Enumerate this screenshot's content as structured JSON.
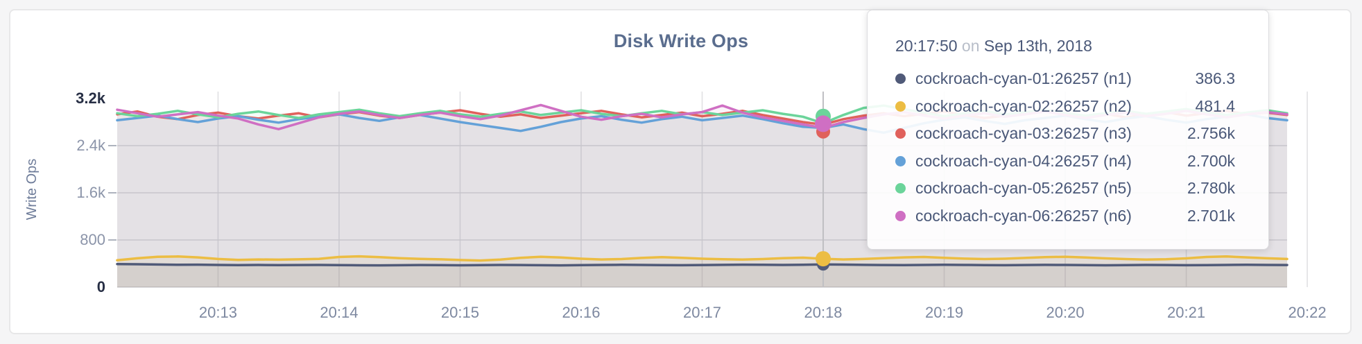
{
  "page": {
    "background": "#f5f5f6",
    "card_border": "#e7e7e8"
  },
  "chart_data": {
    "type": "line",
    "title": "Disk Write Ops",
    "ylabel": "Write Ops",
    "grid": true,
    "ylim": [
      0,
      3200
    ],
    "x_start_time": "20:12:10",
    "x_interval_seconds": 10,
    "x_ticks": [
      "20:13",
      "20:14",
      "20:15",
      "20:16",
      "20:17",
      "20:18",
      "20:19",
      "20:20",
      "20:21",
      "20:22"
    ],
    "y_ticks": [
      {
        "label": "3.2k",
        "value": 3200,
        "emphasis": true,
        "tick_dash": false
      },
      {
        "label": "2.4k",
        "value": 2400,
        "emphasis": false,
        "tick_dash": true
      },
      {
        "label": "1.6k",
        "value": 1600,
        "emphasis": false,
        "tick_dash": true
      },
      {
        "label": "800",
        "value": 800,
        "emphasis": false,
        "tick_dash": true
      },
      {
        "label": "0",
        "value": 0,
        "emphasis": true,
        "tick_dash": false
      }
    ],
    "series": [
      {
        "id": "n1",
        "name": "cockroach-cyan-01:26257 (n1)",
        "color": "#505a78",
        "fill_opacity": 0.1,
        "values": [
          392,
          388,
          383,
          379,
          381,
          377,
          374,
          376,
          373,
          375,
          377,
          374,
          371,
          369,
          372,
          375,
          373,
          371,
          374,
          377,
          375,
          372,
          370,
          373,
          376,
          379,
          377,
          374,
          372,
          375,
          378,
          381,
          379,
          376,
          380,
          386.3,
          382,
          378,
          375,
          373,
          376,
          379,
          377,
          374,
          372,
          375,
          378,
          376,
          373,
          371,
          374,
          377,
          375,
          372,
          374,
          377,
          380,
          377,
          375
        ]
      },
      {
        "id": "n2",
        "name": "cockroach-cyan-02:26257 (n2)",
        "color": "#ecbd43",
        "fill_opacity": 0.1,
        "values": [
          455,
          490,
          515,
          520,
          505,
          478,
          462,
          470,
          466,
          472,
          480,
          512,
          522,
          508,
          492,
          480,
          472,
          460,
          452,
          468,
          498,
          515,
          502,
          482,
          470,
          476,
          495,
          508,
          496,
          482,
          474,
          468,
          476,
          492,
          500,
          481.4,
          470,
          478,
          492,
          505,
          512,
          498,
          484,
          476,
          482,
          495,
          508,
          515,
          502,
          488,
          476,
          468,
          474,
          488,
          512,
          520,
          505,
          490,
          478
        ]
      },
      {
        "id": "n3",
        "name": "cockroach-cyan-03:26257 (n3)",
        "color": "#e0615c",
        "fill_opacity": 0.08,
        "values": [
          2930,
          2980,
          2890,
          2850,
          2920,
          2960,
          2900,
          2860,
          2910,
          2950,
          2880,
          2930,
          2970,
          2910,
          2870,
          2920,
          2960,
          3000,
          2940,
          2890,
          2930,
          2870,
          2910,
          2950,
          2990,
          2930,
          2880,
          2920,
          2960,
          2900,
          2940,
          2990,
          2920,
          2860,
          2800,
          2756,
          2850,
          2910,
          2950,
          2900,
          2940,
          2980,
          2920,
          2870,
          2910,
          2960,
          3000,
          2950,
          2900,
          2940,
          2880,
          2920,
          2970,
          2910,
          2950,
          2990,
          2930,
          2960,
          2920
        ]
      },
      {
        "id": "n4",
        "name": "cockroach-cyan-04:26257 (n4)",
        "color": "#64a1d8",
        "fill_opacity": 0.08,
        "values": [
          2830,
          2870,
          2910,
          2850,
          2800,
          2860,
          2900,
          2840,
          2790,
          2850,
          2890,
          2930,
          2870,
          2820,
          2880,
          2920,
          2860,
          2800,
          2750,
          2700,
          2650,
          2720,
          2800,
          2860,
          2900,
          2840,
          2790,
          2850,
          2890,
          2830,
          2870,
          2910,
          2850,
          2780,
          2720,
          2700,
          2760,
          2680,
          2620,
          2700,
          2780,
          2840,
          2880,
          2820,
          2770,
          2830,
          2870,
          2910,
          2850,
          2800,
          2860,
          2900,
          2840,
          2790,
          2850,
          2890,
          2930,
          2870,
          2830
        ]
      },
      {
        "id": "n5",
        "name": "cockroach-cyan-05:26257 (n5)",
        "color": "#6bd49a",
        "fill_opacity": 0.08,
        "values": [
          2950,
          2900,
          2940,
          2990,
          2930,
          2880,
          2940,
          2980,
          2920,
          2870,
          2930,
          2970,
          3010,
          2950,
          2900,
          2950,
          2990,
          2930,
          2890,
          2940,
          2980,
          2920,
          2960,
          3000,
          2940,
          2900,
          2950,
          2990,
          2930,
          2970,
          2920,
          2960,
          3000,
          2940,
          2890,
          2780,
          2920,
          3040,
          3080,
          3020,
          2960,
          2900,
          2950,
          2990,
          2930,
          2970,
          3010,
          2950,
          2910,
          2950,
          2990,
          2940,
          2980,
          3020,
          2960,
          2920,
          2960,
          3000,
          2950
        ]
      },
      {
        "id": "n6",
        "name": "cockroach-cyan-06:26257 (n6)",
        "color": "#cf6fc3",
        "fill_opacity": 0.08,
        "values": [
          3010,
          2950,
          2890,
          2930,
          2970,
          2910,
          2860,
          2760,
          2680,
          2780,
          2880,
          2940,
          2980,
          2920,
          2870,
          2920,
          2960,
          2900,
          2850,
          2910,
          3000,
          3090,
          2990,
          2890,
          2840,
          2900,
          2940,
          2880,
          2930,
          2970,
          3080,
          2960,
          2880,
          2820,
          2760,
          2701,
          2800,
          2870,
          2930,
          2970,
          2910,
          2860,
          2910,
          2950,
          2890,
          2930,
          2980,
          2920,
          2870,
          2920,
          2960,
          2900,
          2940,
          2990,
          2930,
          2880,
          2930,
          2970,
          2930
        ]
      }
    ],
    "hover": {
      "index": 35,
      "time": "20:17:50",
      "date": "Sep 13th, 2018"
    }
  },
  "tooltip": {
    "time": "20:17:50",
    "separator": "on",
    "date": "Sep 13th, 2018",
    "rows": [
      {
        "series": "n1",
        "label": "cockroach-cyan-01:26257 (n1)",
        "value": "386.3",
        "color": "#505a78"
      },
      {
        "series": "n2",
        "label": "cockroach-cyan-02:26257 (n2)",
        "value": "481.4",
        "color": "#ecbd43"
      },
      {
        "series": "n3",
        "label": "cockroach-cyan-03:26257 (n3)",
        "value": "2.756k",
        "color": "#e0615c"
      },
      {
        "series": "n4",
        "label": "cockroach-cyan-04:26257 (n4)",
        "value": "2.700k",
        "color": "#64a1d8"
      },
      {
        "series": "n5",
        "label": "cockroach-cyan-05:26257 (n5)",
        "value": "2.780k",
        "color": "#6bd49a"
      },
      {
        "series": "n6",
        "label": "cockroach-cyan-06:26257 (n6)",
        "value": "2.701k",
        "color": "#cf6fc3"
      }
    ]
  }
}
